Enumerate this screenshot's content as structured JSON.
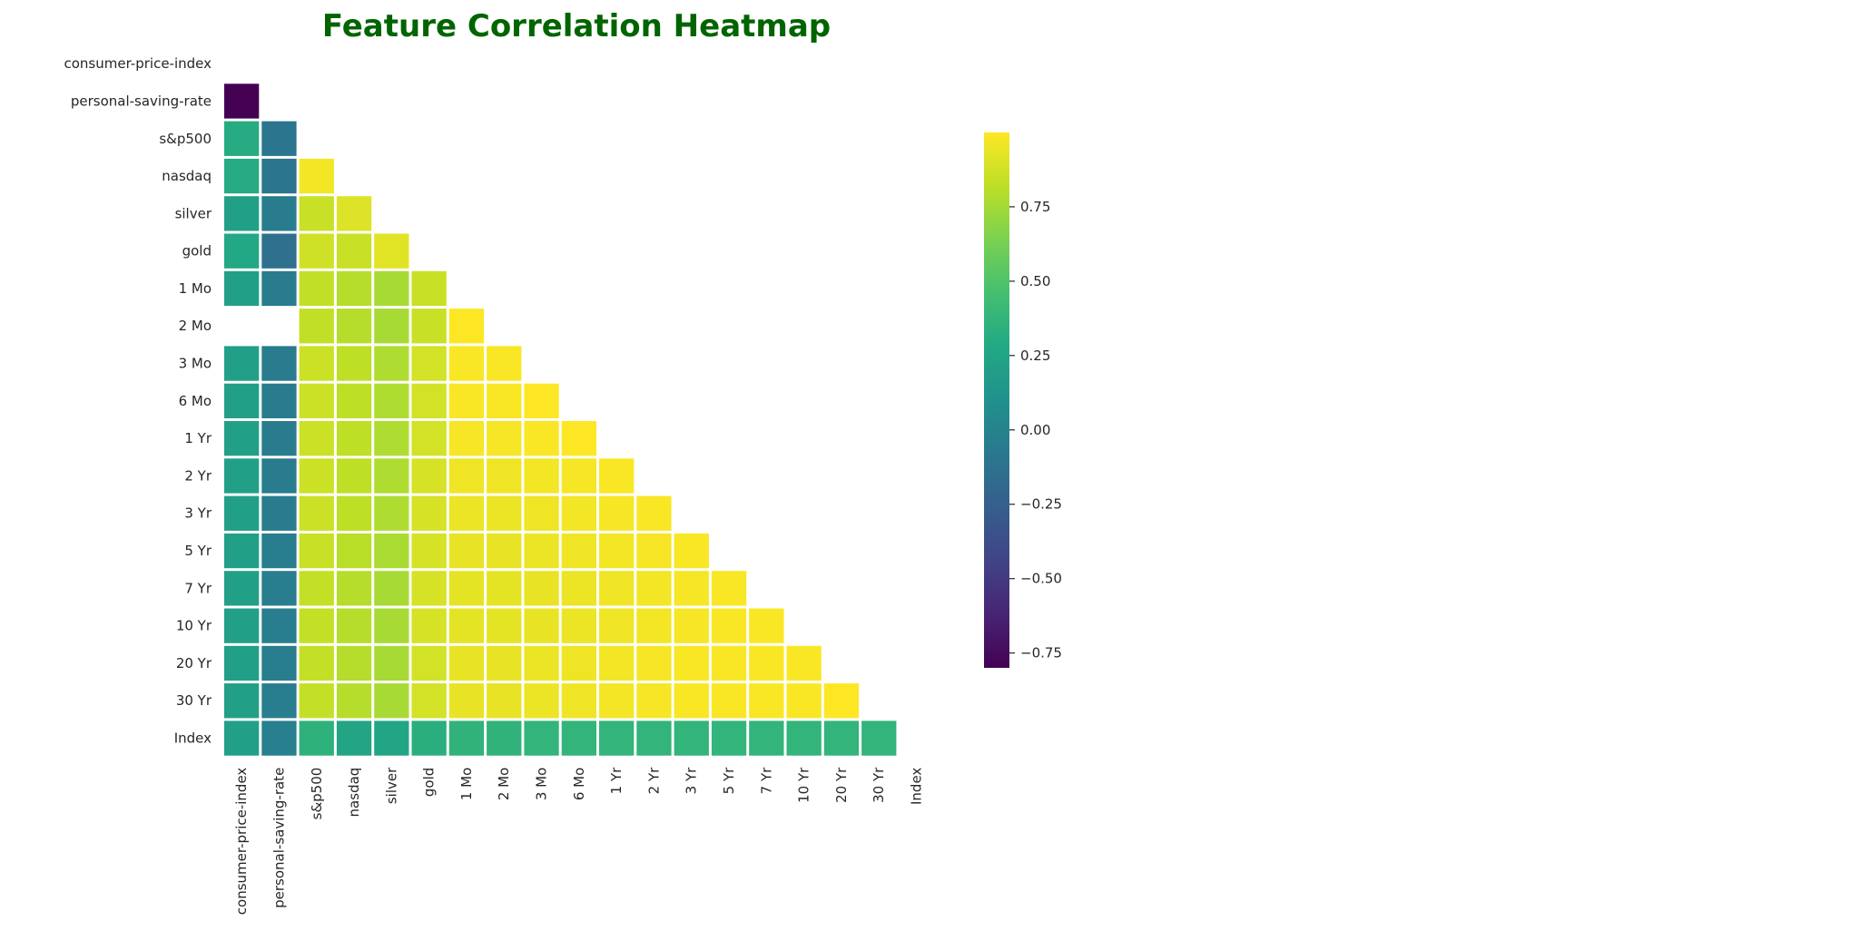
{
  "chart_data": {
    "type": "heatmap",
    "title": "Feature Correlation Heatmap",
    "xlabel": "",
    "ylabel": "",
    "colormap": "viridis",
    "mask": "upper-triangle",
    "vmin": -0.8,
    "vmax": 1.0,
    "colorbar": {
      "ticks": [
        0.75,
        0.5,
        0.25,
        0.0,
        -0.25,
        -0.5,
        -0.75
      ],
      "tick_labels": [
        "0.75",
        "0.50",
        "0.25",
        "0.00",
        "−0.25",
        "−0.50",
        "−0.75"
      ],
      "placement": "right"
    },
    "labels": [
      "consumer-price-index",
      "personal-saving-rate",
      "s&p500",
      "nasdaq",
      "silver",
      "gold",
      "1 Mo",
      "2 Mo",
      "3 Mo",
      "6 Mo",
      "1 Yr",
      "2 Yr",
      "3 Yr",
      "5 Yr",
      "7 Yr",
      "10 Yr",
      "20 Yr",
      "30 Yr",
      "Index"
    ],
    "matrix": [
      [
        null,
        null,
        null,
        null,
        null,
        null,
        null,
        null,
        null,
        null,
        null,
        null,
        null,
        null,
        null,
        null,
        null,
        null,
        null
      ],
      [
        -0.8,
        null,
        null,
        null,
        null,
        null,
        null,
        null,
        null,
        null,
        null,
        null,
        null,
        null,
        null,
        null,
        null,
        null,
        null
      ],
      [
        0.3,
        -0.1,
        null,
        null,
        null,
        null,
        null,
        null,
        null,
        null,
        null,
        null,
        null,
        null,
        null,
        null,
        null,
        null,
        null
      ],
      [
        0.3,
        -0.1,
        0.97,
        null,
        null,
        null,
        null,
        null,
        null,
        null,
        null,
        null,
        null,
        null,
        null,
        null,
        null,
        null,
        null
      ],
      [
        0.22,
        -0.05,
        0.85,
        0.91,
        null,
        null,
        null,
        null,
        null,
        null,
        null,
        null,
        null,
        null,
        null,
        null,
        null,
        null,
        null
      ],
      [
        0.28,
        -0.14,
        0.87,
        0.85,
        0.92,
        null,
        null,
        null,
        null,
        null,
        null,
        null,
        null,
        null,
        null,
        null,
        null,
        null,
        null
      ],
      [
        0.22,
        -0.05,
        0.83,
        0.8,
        0.76,
        0.85,
        null,
        null,
        null,
        null,
        null,
        null,
        null,
        null,
        null,
        null,
        null,
        null,
        null
      ],
      [
        null,
        null,
        0.83,
        0.8,
        0.76,
        0.85,
        1.0,
        null,
        null,
        null,
        null,
        null,
        null,
        null,
        null,
        null,
        null,
        null,
        null
      ],
      [
        0.22,
        -0.05,
        0.86,
        0.82,
        0.78,
        0.88,
        0.99,
        0.99,
        null,
        null,
        null,
        null,
        null,
        null,
        null,
        null,
        null,
        null,
        null
      ],
      [
        0.22,
        -0.05,
        0.86,
        0.82,
        0.78,
        0.88,
        0.99,
        0.99,
        1.0,
        null,
        null,
        null,
        null,
        null,
        null,
        null,
        null,
        null,
        null
      ],
      [
        0.22,
        -0.05,
        0.86,
        0.82,
        0.78,
        0.88,
        0.98,
        0.98,
        0.99,
        1.0,
        null,
        null,
        null,
        null,
        null,
        null,
        null,
        null,
        null
      ],
      [
        0.22,
        -0.05,
        0.86,
        0.82,
        0.78,
        0.89,
        0.96,
        0.96,
        0.97,
        0.98,
        0.99,
        null,
        null,
        null,
        null,
        null,
        null,
        null,
        null
      ],
      [
        0.22,
        -0.05,
        0.86,
        0.82,
        0.78,
        0.89,
        0.95,
        0.95,
        0.96,
        0.97,
        0.98,
        0.99,
        null,
        null,
        null,
        null,
        null,
        null,
        null
      ],
      [
        0.21,
        -0.04,
        0.85,
        0.81,
        0.77,
        0.89,
        0.94,
        0.94,
        0.95,
        0.96,
        0.97,
        0.98,
        0.99,
        null,
        null,
        null,
        null,
        null,
        null
      ],
      [
        0.21,
        -0.04,
        0.84,
        0.8,
        0.76,
        0.89,
        0.93,
        0.93,
        0.94,
        0.95,
        0.96,
        0.97,
        0.98,
        0.99,
        null,
        null,
        null,
        null,
        null
      ],
      [
        0.21,
        -0.04,
        0.84,
        0.8,
        0.76,
        0.89,
        0.93,
        0.93,
        0.94,
        0.95,
        0.96,
        0.97,
        0.98,
        0.99,
        0.99,
        null,
        null,
        null,
        null
      ],
      [
        0.21,
        -0.04,
        0.84,
        0.8,
        0.76,
        0.88,
        0.94,
        0.94,
        0.95,
        0.96,
        0.97,
        0.98,
        0.99,
        0.99,
        0.99,
        0.99,
        null,
        null,
        null
      ],
      [
        0.21,
        -0.04,
        0.84,
        0.8,
        0.76,
        0.88,
        0.94,
        0.94,
        0.95,
        0.96,
        0.97,
        0.98,
        0.99,
        0.99,
        0.99,
        0.99,
        1.0,
        null,
        null
      ],
      [
        0.21,
        -0.03,
        0.35,
        0.25,
        0.26,
        0.33,
        0.36,
        0.36,
        0.37,
        0.37,
        0.37,
        0.37,
        0.37,
        0.37,
        0.37,
        0.37,
        0.37,
        0.37,
        null
      ]
    ]
  }
}
